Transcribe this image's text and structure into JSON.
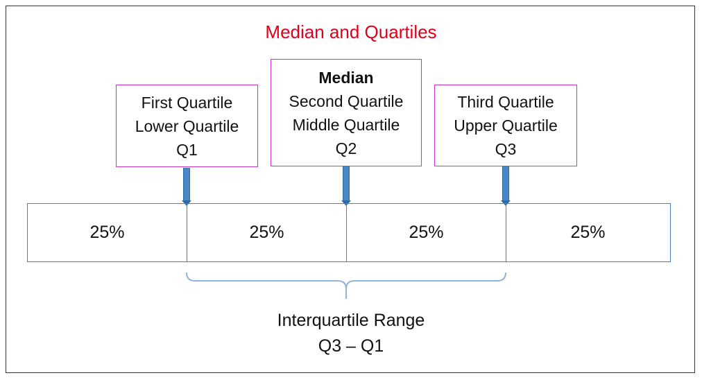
{
  "title": "Median and Quartiles",
  "quartile_boxes": [
    {
      "heading": "",
      "lines": [
        "First Quartile",
        "Lower Quartile",
        "Q1"
      ]
    },
    {
      "heading": "Median",
      "lines": [
        "Second Quartile",
        "Middle Quartile",
        "Q2"
      ]
    },
    {
      "heading": "",
      "lines": [
        "Third Quartile",
        "Upper Quartile",
        "Q3"
      ]
    }
  ],
  "segments": [
    "25%",
    "25%",
    "25%",
    "25%"
  ],
  "range_label": {
    "line1": "Interquartile Range",
    "line2": "Q3 – Q1"
  },
  "colors": {
    "title": "#e0001b",
    "box_border": "#cc33cc",
    "bar_border": "#4a7fbf",
    "arrow": "#4a87c8",
    "brace": "#8fb4dc"
  }
}
